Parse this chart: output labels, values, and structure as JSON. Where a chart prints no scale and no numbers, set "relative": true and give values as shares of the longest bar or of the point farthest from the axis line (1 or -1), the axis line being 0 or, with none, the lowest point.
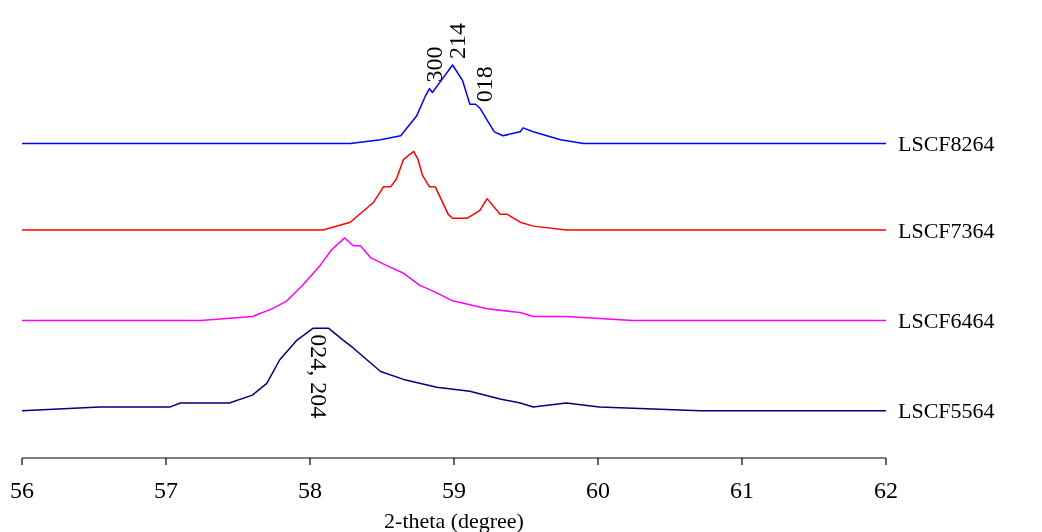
{
  "chart_data": {
    "type": "line",
    "relative": true,
    "xlabel": "2-theta (degree)",
    "xlim": [
      56,
      62
    ],
    "xticks": [
      56,
      57,
      58,
      59,
      60,
      61,
      62
    ],
    "series": [
      {
        "name": "LSCF8264",
        "color": "#0000ff",
        "x": [
          56.0,
          56.26,
          56.54,
          57.24,
          57.93,
          58.28,
          58.49,
          58.63,
          58.74,
          58.8,
          58.83,
          58.85,
          58.89,
          58.99,
          59.06,
          59.11,
          59.15,
          59.18,
          59.23,
          59.28,
          59.34,
          59.46,
          59.48,
          59.55,
          59.74,
          59.9,
          60.24,
          60.71,
          61.13,
          61.4,
          61.75,
          62.0
        ],
        "values": [
          0.8,
          0.8,
          0.8,
          0.8,
          0.8,
          0.8,
          0.81,
          0.82,
          0.87,
          0.92,
          0.94,
          0.93,
          0.95,
          1.0,
          0.96,
          0.9,
          0.9,
          0.89,
          0.86,
          0.83,
          0.82,
          0.83,
          0.84,
          0.83,
          0.81,
          0.8,
          0.8,
          0.8,
          0.8,
          0.8,
          0.8,
          0.8
        ]
      },
      {
        "name": "LSCF7364",
        "color": "#ff0000",
        "x": [
          56.0,
          56.54,
          57.24,
          57.93,
          58.09,
          58.28,
          58.44,
          58.51,
          58.56,
          58.6,
          58.65,
          58.72,
          58.75,
          58.78,
          58.83,
          58.87,
          58.96,
          58.99,
          59.09,
          59.18,
          59.23,
          59.32,
          59.37,
          59.46,
          59.55,
          59.78,
          60.24,
          60.71,
          61.4,
          62.0
        ],
        "values": [
          0.58,
          0.58,
          0.58,
          0.58,
          0.58,
          0.6,
          0.65,
          0.69,
          0.69,
          0.71,
          0.76,
          0.78,
          0.76,
          0.72,
          0.69,
          0.69,
          0.62,
          0.61,
          0.61,
          0.63,
          0.66,
          0.62,
          0.62,
          0.6,
          0.59,
          0.58,
          0.58,
          0.58,
          0.58,
          0.58
        ]
      },
      {
        "name": "LSCF6464",
        "color": "#ff00ff",
        "x": [
          56.0,
          56.54,
          57.24,
          57.6,
          57.74,
          57.84,
          57.95,
          58.07,
          58.15,
          58.24,
          58.3,
          58.35,
          58.42,
          58.53,
          58.65,
          58.76,
          58.88,
          58.99,
          59.23,
          59.46,
          59.55,
          59.78,
          60.24,
          60.71,
          61.4,
          62.0
        ],
        "values": [
          0.35,
          0.35,
          0.35,
          0.36,
          0.38,
          0.4,
          0.44,
          0.49,
          0.53,
          0.56,
          0.54,
          0.54,
          0.51,
          0.49,
          0.47,
          0.44,
          0.42,
          0.4,
          0.38,
          0.37,
          0.36,
          0.36,
          0.35,
          0.35,
          0.35,
          0.35
        ]
      },
      {
        "name": "LSCF5564",
        "color": "#000080",
        "x": [
          56.0,
          56.54,
          57.03,
          57.1,
          57.44,
          57.6,
          57.7,
          57.79,
          57.91,
          58.02,
          58.13,
          58.23,
          58.3,
          58.49,
          58.65,
          58.88,
          59.11,
          59.32,
          59.46,
          59.55,
          59.78,
          60.01,
          60.71,
          61.4,
          62.0
        ],
        "values": [
          0.12,
          0.13,
          0.13,
          0.14,
          0.14,
          0.16,
          0.19,
          0.25,
          0.3,
          0.33,
          0.33,
          0.3,
          0.28,
          0.22,
          0.2,
          0.18,
          0.17,
          0.15,
          0.14,
          0.13,
          0.14,
          0.13,
          0.12,
          0.12,
          0.12
        ]
      }
    ],
    "annotations": [
      {
        "text": "300",
        "x": 58.83,
        "y": 0.94
      },
      {
        "text": "214",
        "x": 58.99,
        "y": 1.0
      },
      {
        "text": "018",
        "x": 59.18,
        "y": 0.89
      },
      {
        "text": "024, 204",
        "x": 58.02,
        "y": 0.33
      }
    ]
  }
}
